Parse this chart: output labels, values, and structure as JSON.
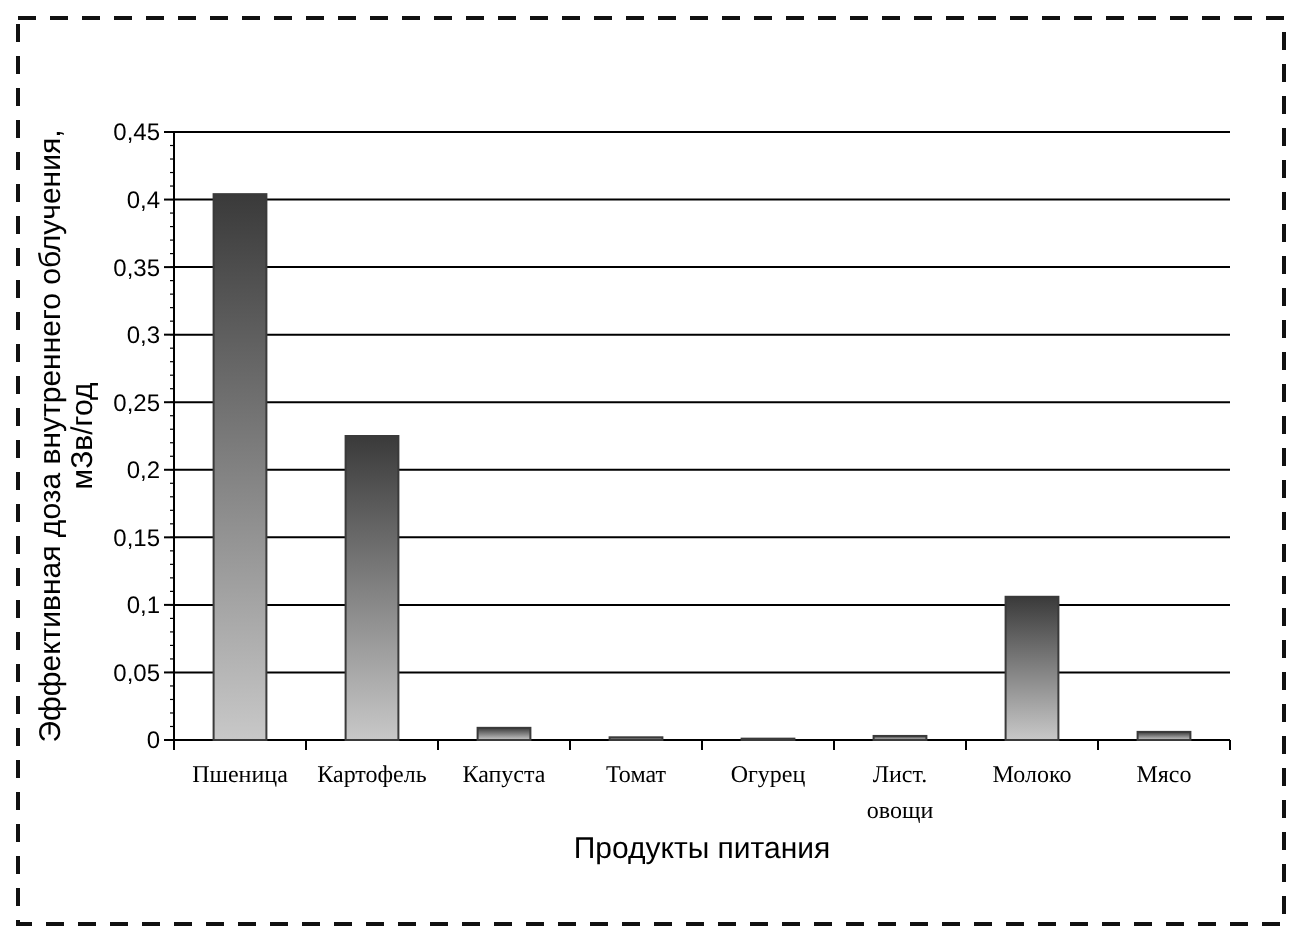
{
  "chart_data": {
    "type": "bar",
    "xlabel": "Продукты питания",
    "ylabel": "Эффективная доза внутреннего облучения, мЗв/год",
    "categories": [
      "Пшеница",
      "Картофель",
      "Капуста",
      "Томат",
      "Огурец",
      "Лист. овощи",
      "Молоко",
      "Мясо"
    ],
    "values": [
      0.404,
      0.225,
      0.009,
      0.002,
      0.001,
      0.003,
      0.106,
      0.006
    ],
    "color": "#3a3a3a",
    "ylim": [
      0,
      0.45
    ],
    "yticks": [
      {
        "value": 0,
        "label": "0"
      },
      {
        "value": 0.05,
        "label": "0,05"
      },
      {
        "value": 0.1,
        "label": "0,1"
      },
      {
        "value": 0.15,
        "label": "0,15"
      },
      {
        "value": 0.2,
        "label": "0,2"
      },
      {
        "value": 0.25,
        "label": "0,25"
      },
      {
        "value": 0.3,
        "label": "0,3"
      },
      {
        "value": 0.35,
        "label": "0,35"
      },
      {
        "value": 0.4,
        "label": "0,4"
      },
      {
        "value": 0.45,
        "label": "0,45"
      }
    ],
    "grid": "y"
  }
}
